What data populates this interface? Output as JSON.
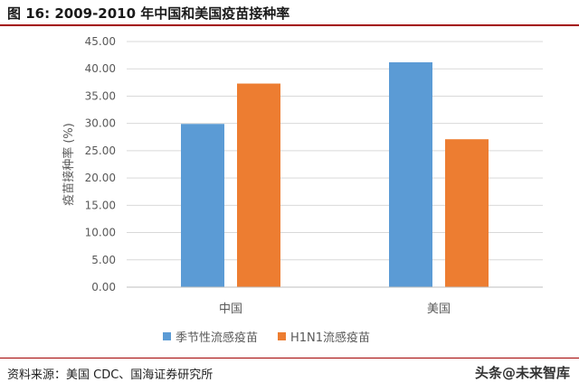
{
  "figure_title": "图 16:  2009-2010 年中国和美国疫苗接种率",
  "source_note": "资料来源：美国 CDC、国海证券研究所",
  "watermark": "头条@未来智库",
  "colors": {
    "seasonal": "#5b9bd5",
    "h1n1": "#ed7d31",
    "rule": "#a30000"
  },
  "chart_data": {
    "type": "bar",
    "title": "",
    "xlabel": "",
    "ylabel": "疫苗接种率 (%)",
    "ylim": [
      0,
      45
    ],
    "yticks": [
      "0.00",
      "5.00",
      "10.00",
      "15.00",
      "20.00",
      "25.00",
      "30.00",
      "35.00",
      "40.00",
      "45.00"
    ],
    "categories": [
      "中国",
      "美国"
    ],
    "series": [
      {
        "name": "季节性流感疫苗",
        "values": [
          29.9,
          41.2
        ]
      },
      {
        "name": "H1N1流感疫苗",
        "values": [
          37.3,
          27.1
        ]
      }
    ],
    "legend": "bottom",
    "grid": true
  }
}
